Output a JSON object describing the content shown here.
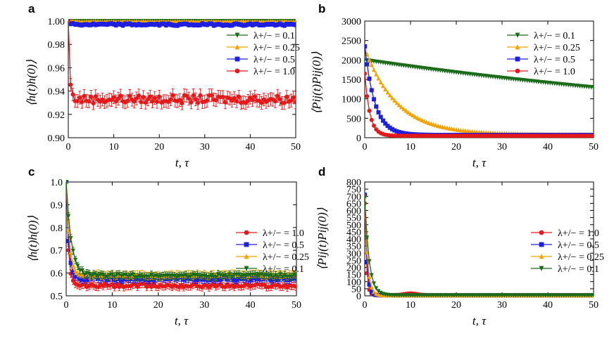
{
  "chart_data": [
    {
      "panel": "a",
      "type": "line",
      "ylabel": "⟨h(t)h(0)⟩",
      "xlabel": "t, τ",
      "xlim": [
        0,
        50
      ],
      "ylim": [
        0.9,
        1.0
      ],
      "xticks": [
        0,
        10,
        20,
        30,
        40,
        50
      ],
      "yticks": [
        0.9,
        0.92,
        0.94,
        0.96,
        0.98,
        1.0
      ],
      "ytick_labels": [
        "0.90",
        "0.92",
        "0.94",
        "0.96",
        "0.98",
        "1.00"
      ],
      "legend_position": "top-right",
      "series": [
        {
          "name": "λ+/− = 0.1",
          "color": "#1a6b1a",
          "marker": "triangle-down",
          "start": 1.0,
          "plateau": 1.0,
          "tau": 1,
          "noise": 0,
          "err": 0
        },
        {
          "name": "λ+/− = 0.25",
          "color": "#f4a300",
          "marker": "triangle-up",
          "start": 1.0,
          "plateau": 0.9995,
          "tau": 1,
          "noise": 0.0002,
          "err": 0.0005
        },
        {
          "name": "λ+/− = 0.5",
          "color": "#1f1fe0",
          "marker": "square",
          "start": 1.0,
          "plateau": 0.997,
          "tau": 0.5,
          "noise": 0.0008,
          "err": 0.0018
        },
        {
          "name": "λ+/− = 1.0",
          "color": "#e31a1c",
          "marker": "circle",
          "start": 1.0,
          "plateau": 0.933,
          "tau": 0.3,
          "noise": 0.0035,
          "err": 0.0055
        }
      ]
    },
    {
      "panel": "b",
      "type": "line",
      "ylabel": "⟨Pij(t)Pij(0)⟩",
      "xlabel": "t, τ",
      "xlim": [
        0,
        50
      ],
      "ylim": [
        0,
        3000
      ],
      "xticks": [
        0,
        10,
        20,
        30,
        40,
        50
      ],
      "yticks": [
        0,
        500,
        1000,
        1500,
        2000,
        2500,
        3000
      ],
      "ytick_labels": [
        "0",
        "500",
        "1000",
        "1500",
        "2000",
        "2500",
        "3000"
      ],
      "legend_position": "top-right",
      "series": [
        {
          "name": "λ+/− = 0.1",
          "color": "#1a6b1a",
          "marker": "triangle-down",
          "start": 2000,
          "plateau": 0,
          "tau": 115,
          "noise": 0,
          "err": 0
        },
        {
          "name": "λ+/− = 0.25",
          "color": "#f4a300",
          "marker": "triangle-up",
          "start": 2300,
          "plateau": 80,
          "tau": 7,
          "noise": 0,
          "err": 0
        },
        {
          "name": "λ+/− = 0.5",
          "color": "#1f1fe0",
          "marker": "square",
          "start": 2350,
          "plateau": 70,
          "tau": 2.2,
          "noise": 0,
          "err": 0
        },
        {
          "name": "λ+/− = 1.0",
          "color": "#e31a1c",
          "marker": "circle",
          "start": 1650,
          "plateau": 50,
          "tau": 1.1,
          "noise": 0,
          "err": 0
        }
      ]
    },
    {
      "panel": "c",
      "type": "line",
      "ylabel": "⟨h(t)h(0)⟩",
      "xlabel": "t, τ",
      "xlim": [
        0,
        50
      ],
      "ylim": [
        0.5,
        1.0
      ],
      "xticks": [
        0,
        10,
        20,
        30,
        40,
        50
      ],
      "yticks": [
        0.5,
        0.6,
        0.7,
        0.8,
        0.9,
        1.0
      ],
      "ytick_labels": [
        "0.5",
        "0.6",
        "0.7",
        "0.8",
        "0.9",
        "1.0"
      ],
      "legend_position": "center-right",
      "series": [
        {
          "name": "λ+/− = 1.0",
          "color": "#e31a1c",
          "marker": "circle",
          "start": 1.0,
          "plateau": 0.545,
          "tau": 0.45,
          "noise": 0.008,
          "err": 0.017
        },
        {
          "name": "λ+/− = 0.5",
          "color": "#1f1fe0",
          "marker": "square",
          "start": 1.0,
          "plateau": 0.575,
          "tau": 0.55,
          "noise": 0.007,
          "err": 0.016
        },
        {
          "name": "λ+/− = 0.25",
          "color": "#f4a300",
          "marker": "triangle-up",
          "start": 1.0,
          "plateau": 0.592,
          "tau": 0.7,
          "noise": 0.007,
          "err": 0.016
        },
        {
          "name": "λ+/− = 0.1",
          "color": "#1a6b1a",
          "marker": "triangle-down",
          "start": 1.0,
          "plateau": 0.588,
          "tau": 1.1,
          "noise": 0.007,
          "err": 0.016
        }
      ]
    },
    {
      "panel": "d",
      "type": "line",
      "ylabel": "⟨Pij(t)Pij(0)⟩",
      "xlabel": "t, τ",
      "xlim": [
        0,
        50
      ],
      "ylim": [
        0,
        800
      ],
      "xticks": [
        0,
        10,
        20,
        30,
        40,
        50
      ],
      "yticks": [
        0,
        50,
        100,
        150,
        200,
        250,
        300,
        350,
        400,
        450,
        500,
        550,
        600,
        650,
        700,
        750,
        800
      ],
      "ytick_labels": [
        "0",
        "50",
        "100",
        "150",
        "200",
        "250",
        "300",
        "350",
        "400",
        "450",
        "500",
        "550",
        "600",
        "650",
        "700",
        "750",
        "800"
      ],
      "legend_position": "center-right",
      "series": [
        {
          "name": "λ+/− = 1.0",
          "color": "#e31a1c",
          "marker": "circle",
          "start": 650,
          "plateau": 5,
          "tau": 0.35,
          "noise": 0,
          "err": 0,
          "bump": 12
        },
        {
          "name": "λ+/− = 0.5",
          "color": "#1f1fe0",
          "marker": "square",
          "start": 710,
          "plateau": 3,
          "tau": 0.45,
          "noise": 0,
          "err": 0
        },
        {
          "name": "λ+/− = 0.25",
          "color": "#f4a300",
          "marker": "triangle-up",
          "start": 700,
          "plateau": 3,
          "tau": 0.6,
          "noise": 0,
          "err": 0
        },
        {
          "name": "λ+/− = 0.1",
          "color": "#1a6b1a",
          "marker": "triangle-down",
          "start": 690,
          "plateau": 3,
          "tau": 0.95,
          "noise": 0,
          "err": 0
        }
      ]
    }
  ]
}
